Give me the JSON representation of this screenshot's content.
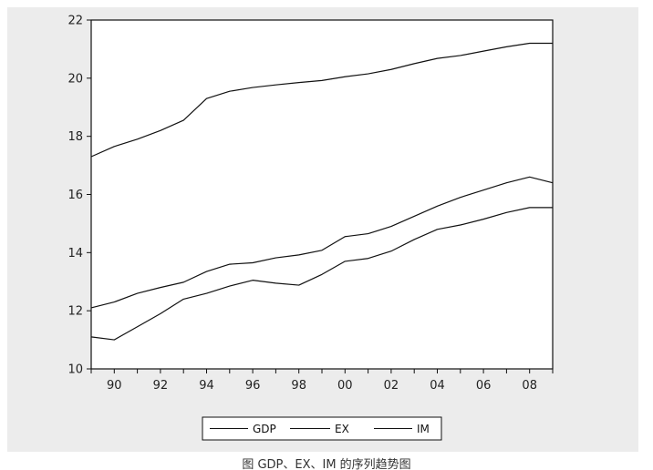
{
  "chart_data": {
    "type": "line",
    "x": [
      1989,
      1990,
      1991,
      1992,
      1993,
      1994,
      1995,
      1996,
      1997,
      1998,
      1999,
      2000,
      2001,
      2002,
      2003,
      2004,
      2005,
      2006,
      2007,
      2008,
      2009
    ],
    "x_tick_values": [
      1990,
      1992,
      1994,
      1996,
      1998,
      2000,
      2002,
      2004,
      2006,
      2008
    ],
    "x_tick_labels": [
      "90",
      "92",
      "94",
      "96",
      "98",
      "00",
      "02",
      "04",
      "06",
      "08"
    ],
    "xlim": [
      1989,
      2009
    ],
    "ylim": [
      10,
      22
    ],
    "y_ticks": [
      10,
      12,
      14,
      16,
      18,
      20,
      22
    ],
    "grid": false,
    "legend_position": "bottom-center",
    "series": [
      {
        "name": "GDP",
        "values": [
          17.3,
          17.65,
          17.9,
          18.2,
          18.55,
          19.3,
          19.55,
          19.68,
          19.77,
          19.85,
          19.92,
          20.05,
          20.15,
          20.3,
          20.5,
          20.68,
          20.78,
          20.93,
          21.08,
          21.2,
          21.2
        ]
      },
      {
        "name": "EX",
        "values": [
          12.1,
          12.3,
          12.6,
          12.8,
          12.98,
          13.35,
          13.6,
          13.65,
          13.82,
          13.92,
          14.08,
          14.55,
          14.65,
          14.9,
          15.25,
          15.6,
          15.9,
          16.15,
          16.4,
          16.6,
          16.4
        ]
      },
      {
        "name": "IM",
        "values": [
          11.1,
          11.0,
          11.45,
          11.9,
          12.4,
          12.6,
          12.85,
          13.05,
          12.95,
          12.88,
          13.25,
          13.7,
          13.8,
          14.05,
          14.45,
          14.8,
          14.95,
          15.15,
          15.38,
          15.55,
          15.55
        ]
      }
    ],
    "colors": {
      "line": "#111111",
      "frame_bg": "#ececec",
      "plot_bg": "#ffffff"
    }
  },
  "caption": "图 GDP、EX、IM 的序列趋势图"
}
